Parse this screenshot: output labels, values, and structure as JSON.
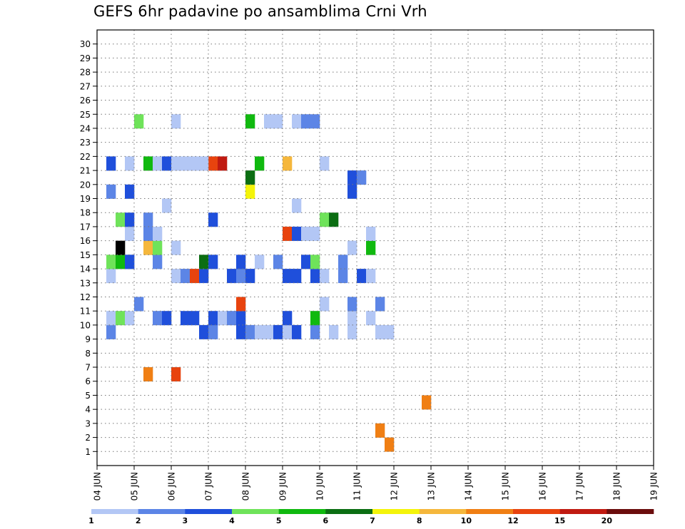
{
  "chart_data": {
    "type": "heatmap",
    "title": "GEFS 6hr padavine po ansamblima Crni Vrh",
    "y_ticks": [
      "1",
      "2",
      "3",
      "4",
      "5",
      "6",
      "7",
      "8",
      "9",
      "10",
      "11",
      "12",
      "13",
      "14",
      "15",
      "16",
      "17",
      "18",
      "19",
      "20",
      "21",
      "22",
      "23",
      "24",
      "25",
      "26",
      "27",
      "28",
      "29",
      "30"
    ],
    "x_ticks": [
      "04 JUN",
      "05 JUN",
      "06 JUN",
      "07 JUN",
      "08 JUN",
      "09 JUN",
      "10 JUN",
      "11 JUN",
      "12 JUN",
      "13 JUN",
      "14 JUN",
      "15 JUN",
      "16 JUN",
      "17 JUN",
      "18 JUN",
      "19 JUN"
    ],
    "time_steps_per_day": 4,
    "grid": true,
    "colorbar": {
      "labels": [
        "1",
        "2",
        "3",
        "4",
        "5",
        "6",
        "7",
        "8",
        "10",
        "12",
        "15",
        "20"
      ],
      "colors": [
        "#b3c7f5",
        "#5c85e6",
        "#1f4fdb",
        "#6fe35a",
        "#10b90f",
        "#0b6e12",
        "#f4f40a",
        "#f5b73c",
        "#f07f14",
        "#e8430e",
        "#c01a11",
        "#6b0d0d"
      ]
    },
    "cells": [
      [
        1,
        31,
        8
      ],
      [
        2,
        30,
        8
      ],
      [
        4,
        35,
        8
      ],
      [
        6,
        5,
        8
      ],
      [
        6,
        8,
        9
      ],
      [
        9,
        1,
        1
      ],
      [
        9,
        11,
        2
      ],
      [
        9,
        12,
        1
      ],
      [
        9,
        15,
        2
      ],
      [
        9,
        16,
        1
      ],
      [
        9,
        17,
        0
      ],
      [
        9,
        18,
        0
      ],
      [
        9,
        19,
        2
      ],
      [
        9,
        20,
        0
      ],
      [
        9,
        21,
        2
      ],
      [
        9,
        23,
        1
      ],
      [
        9,
        25,
        0
      ],
      [
        9,
        27,
        0
      ],
      [
        9,
        30,
        0
      ],
      [
        9,
        31,
        0
      ],
      [
        10,
        1,
        0
      ],
      [
        10,
        2,
        3
      ],
      [
        10,
        3,
        0
      ],
      [
        10,
        6,
        1
      ],
      [
        10,
        7,
        2
      ],
      [
        10,
        9,
        2
      ],
      [
        10,
        10,
        2
      ],
      [
        10,
        12,
        2
      ],
      [
        10,
        13,
        0
      ],
      [
        10,
        14,
        1
      ],
      [
        10,
        15,
        2
      ],
      [
        10,
        20,
        2
      ],
      [
        10,
        23,
        4
      ],
      [
        10,
        27,
        0
      ],
      [
        10,
        29,
        0
      ],
      [
        11,
        30,
        1
      ],
      [
        11,
        4,
        1
      ],
      [
        11,
        27,
        1
      ],
      [
        11,
        15,
        9
      ],
      [
        11,
        24,
        0
      ],
      [
        13,
        1,
        0
      ],
      [
        13,
        8,
        0
      ],
      [
        13,
        9,
        1
      ],
      [
        13,
        10,
        9
      ],
      [
        13,
        11,
        2
      ],
      [
        13,
        14,
        2
      ],
      [
        13,
        15,
        1
      ],
      [
        13,
        16,
        2
      ],
      [
        13,
        20,
        2
      ],
      [
        13,
        21,
        2
      ],
      [
        13,
        23,
        2
      ],
      [
        13,
        24,
        0
      ],
      [
        13,
        26,
        1
      ],
      [
        13,
        28,
        2
      ],
      [
        13,
        29,
        0
      ],
      [
        14,
        1,
        3
      ],
      [
        14,
        2,
        4
      ],
      [
        14,
        3,
        1
      ],
      [
        14,
        15,
        2
      ],
      [
        14,
        19,
        1
      ],
      [
        14,
        22,
        2
      ],
      [
        14,
        23,
        3
      ],
      [
        14,
        26,
        1
      ],
      [
        14,
        11,
        5
      ],
      [
        14,
        12,
        2
      ],
      [
        14,
        17,
        0
      ],
      [
        14,
        6,
        1
      ],
      [
        14,
        3,
        2
      ],
      [
        15,
        2,
        12
      ],
      [
        15,
        8,
        0
      ],
      [
        15,
        27,
        0
      ],
      [
        15,
        5,
        7
      ],
      [
        15,
        6,
        3
      ],
      [
        15,
        29,
        4
      ],
      [
        16,
        3,
        0
      ],
      [
        16,
        5,
        1
      ],
      [
        16,
        6,
        0
      ],
      [
        16,
        20,
        9
      ],
      [
        16,
        21,
        2
      ],
      [
        16,
        22,
        0
      ],
      [
        16,
        23,
        0
      ],
      [
        16,
        29,
        0
      ],
      [
        17,
        2,
        3
      ],
      [
        17,
        3,
        2
      ],
      [
        17,
        5,
        1
      ],
      [
        17,
        12,
        2
      ],
      [
        17,
        24,
        3
      ],
      [
        17,
        25,
        5
      ],
      [
        18,
        7,
        0
      ],
      [
        18,
        21,
        0
      ],
      [
        19,
        1,
        1
      ],
      [
        19,
        3,
        2
      ],
      [
        19,
        16,
        6
      ],
      [
        19,
        27,
        2
      ],
      [
        20,
        16,
        5
      ],
      [
        20,
        27,
        2
      ],
      [
        20,
        28,
        1
      ],
      [
        21,
        1,
        2
      ],
      [
        21,
        3,
        0
      ],
      [
        21,
        5,
        4
      ],
      [
        21,
        6,
        0
      ],
      [
        21,
        7,
        2
      ],
      [
        21,
        8,
        0
      ],
      [
        21,
        9,
        0
      ],
      [
        21,
        10,
        0
      ],
      [
        21,
        17,
        4
      ],
      [
        21,
        20,
        7
      ],
      [
        21,
        24,
        0
      ],
      [
        21,
        12,
        9
      ],
      [
        21,
        13,
        10
      ],
      [
        21,
        11,
        0
      ],
      [
        24,
        4,
        3
      ],
      [
        24,
        8,
        0
      ],
      [
        24,
        16,
        4
      ],
      [
        24,
        21,
        0
      ],
      [
        24,
        18,
        0
      ],
      [
        24,
        19,
        0
      ],
      [
        24,
        22,
        1
      ],
      [
        24,
        23,
        1
      ]
    ]
  }
}
